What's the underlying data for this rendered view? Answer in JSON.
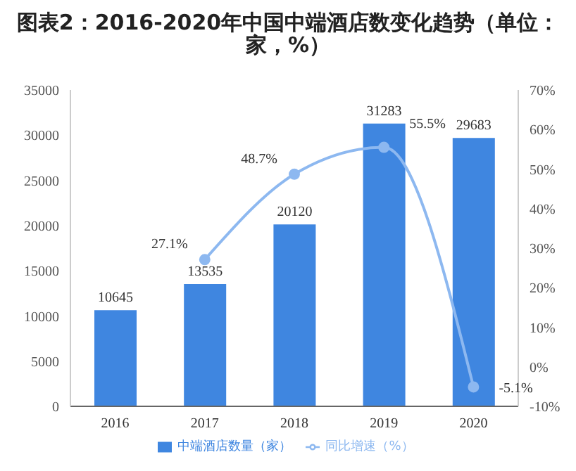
{
  "chart_data": {
    "type": "bar",
    "title": "图表2：2016-2020年中国中端酒店数变化趋势（单位：家，%）",
    "categories": [
      "2016",
      "2017",
      "2018",
      "2019",
      "2020"
    ],
    "series": [
      {
        "name": "中端酒店数量（家）",
        "color": "#3f86e0",
        "values": [
          10645,
          13535,
          20120,
          31283,
          29683
        ],
        "value_labels": [
          "10645",
          "13535",
          "20120",
          "31283",
          "29683"
        ]
      },
      {
        "name": "同比增速（%）",
        "type": "line",
        "axis": "y2",
        "color": "#8db8f0",
        "marker": "circle",
        "values": [
          null,
          27.1,
          48.7,
          55.5,
          -5.1
        ],
        "value_labels": [
          null,
          "27.1%",
          "48.7%",
          "55.5%",
          "-5.1%"
        ]
      }
    ],
    "ylim": [
      0,
      35000
    ],
    "yticks": [
      0,
      5000,
      10000,
      15000,
      20000,
      25000,
      30000,
      35000
    ],
    "y2lim": [
      -10,
      70
    ],
    "y2ticks": [
      {
        "value": -10,
        "label": "-10%"
      },
      {
        "value": 0,
        "label": "0%"
      },
      {
        "value": 10,
        "label": "10%"
      },
      {
        "value": 20,
        "label": "20%"
      },
      {
        "value": 30,
        "label": "30%"
      },
      {
        "value": 40,
        "label": "40%"
      },
      {
        "value": 50,
        "label": "50%"
      },
      {
        "value": 60,
        "label": "60%"
      },
      {
        "value": 70,
        "label": "70%"
      }
    ],
    "grid": false,
    "legend": "bottom"
  }
}
